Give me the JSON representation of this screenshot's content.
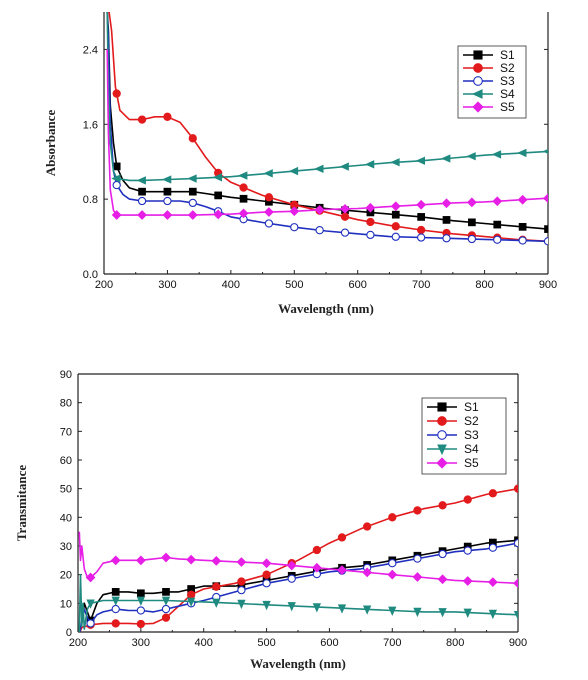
{
  "chart_data": [
    {
      "type": "line",
      "title": "",
      "xlabel": "Wavelength (nm)",
      "ylabel": "Absorbance",
      "xlim": [
        200,
        900
      ],
      "ylim": [
        0,
        2.8
      ],
      "xticks": [
        200,
        300,
        400,
        500,
        600,
        700,
        800,
        900
      ],
      "yticks": [
        0.0,
        0.8,
        1.6,
        2.4
      ],
      "ytick_labels": [
        "0.0",
        "0.8",
        "1.6",
        "2.4"
      ],
      "grid": false,
      "legend_position": "top-right",
      "series": [
        {
          "name": "S1",
          "color": "#000000",
          "marker": "square",
          "filled": true,
          "x": [
            205,
            207,
            210,
            215,
            220,
            230,
            240,
            260,
            280,
            300,
            320,
            340,
            360,
            380,
            400,
            450,
            500,
            550,
            600,
            650,
            700,
            750,
            800,
            850,
            900
          ],
          "y": [
            2.8,
            2.6,
            1.8,
            1.4,
            1.15,
            1.0,
            0.92,
            0.88,
            0.88,
            0.88,
            0.88,
            0.88,
            0.86,
            0.84,
            0.82,
            0.78,
            0.74,
            0.7,
            0.67,
            0.64,
            0.61,
            0.57,
            0.54,
            0.51,
            0.48
          ],
          "mx": [
            220,
            260,
            300,
            340,
            380,
            420,
            460,
            500,
            540,
            580,
            620,
            660,
            700,
            740,
            780,
            820,
            860,
            900
          ]
        },
        {
          "name": "S2",
          "color": "#e31a1c",
          "marker": "circle",
          "filled": true,
          "x": [
            205,
            208,
            212,
            218,
            225,
            240,
            260,
            280,
            300,
            320,
            340,
            360,
            380,
            400,
            450,
            500,
            550,
            600,
            650,
            700,
            750,
            800,
            850,
            900
          ],
          "y": [
            2.8,
            2.8,
            2.6,
            2.0,
            1.75,
            1.65,
            1.65,
            1.68,
            1.68,
            1.62,
            1.45,
            1.25,
            1.08,
            0.98,
            0.84,
            0.74,
            0.66,
            0.58,
            0.52,
            0.47,
            0.43,
            0.4,
            0.37,
            0.35
          ],
          "mx": [
            220,
            260,
            300,
            340,
            380,
            420,
            460,
            500,
            540,
            580,
            620,
            660,
            700,
            740,
            780,
            820,
            860
          ]
        },
        {
          "name": "S3",
          "color": "#1f2fbf",
          "marker": "circle",
          "filled": false,
          "x": [
            205,
            207,
            210,
            215,
            220,
            230,
            240,
            260,
            280,
            300,
            320,
            340,
            360,
            380,
            400,
            450,
            500,
            550,
            600,
            650,
            700,
            750,
            800,
            850,
            900
          ],
          "y": [
            2.8,
            2.5,
            1.6,
            1.1,
            0.95,
            0.85,
            0.8,
            0.78,
            0.78,
            0.78,
            0.78,
            0.76,
            0.72,
            0.67,
            0.61,
            0.55,
            0.5,
            0.46,
            0.43,
            0.4,
            0.39,
            0.38,
            0.37,
            0.36,
            0.35
          ],
          "mx": [
            220,
            260,
            300,
            340,
            380,
            420,
            460,
            500,
            540,
            580,
            620,
            660,
            700,
            740,
            780,
            820,
            860,
            900
          ]
        },
        {
          "name": "S4",
          "color": "#1f8a80",
          "marker": "triangle-left",
          "filled": true,
          "x": [
            205,
            207,
            210,
            215,
            220,
            240,
            260,
            300,
            340,
            400,
            450,
            500,
            550,
            600,
            650,
            700,
            750,
            800,
            850,
            900
          ],
          "y": [
            2.8,
            2.0,
            1.4,
            1.1,
            1.02,
            1.0,
            1.0,
            1.01,
            1.02,
            1.04,
            1.07,
            1.1,
            1.13,
            1.16,
            1.19,
            1.21,
            1.24,
            1.27,
            1.29,
            1.31
          ],
          "mx": [
            220,
            260,
            300,
            340,
            380,
            420,
            460,
            500,
            540,
            580,
            620,
            660,
            700,
            740,
            780,
            820,
            860,
            900
          ]
        },
        {
          "name": "S5",
          "color": "#e61ee6",
          "marker": "diamond",
          "filled": true,
          "x": [
            205,
            207,
            210,
            215,
            220,
            240,
            260,
            300,
            340,
            400,
            450,
            500,
            550,
            600,
            650,
            700,
            750,
            800,
            850,
            900
          ],
          "y": [
            2.4,
            1.5,
            0.9,
            0.68,
            0.63,
            0.63,
            0.63,
            0.63,
            0.63,
            0.64,
            0.66,
            0.67,
            0.69,
            0.7,
            0.72,
            0.74,
            0.76,
            0.77,
            0.79,
            0.81
          ],
          "mx": [
            220,
            260,
            300,
            340,
            380,
            420,
            460,
            500,
            540,
            580,
            620,
            660,
            700,
            740,
            780,
            820,
            860,
            900
          ]
        }
      ]
    },
    {
      "type": "line",
      "title": "",
      "xlabel": "Wavelength (nm)",
      "ylabel": "Transmitance",
      "xlim": [
        200,
        900
      ],
      "ylim": [
        0,
        90
      ],
      "xticks": [
        200,
        300,
        400,
        500,
        600,
        700,
        800,
        900
      ],
      "yticks": [
        0,
        10,
        20,
        30,
        40,
        50,
        60,
        70,
        80,
        90
      ],
      "ytick_labels": [
        "0",
        "10",
        "20",
        "30",
        "40",
        "50",
        "60",
        "70",
        "80",
        "90"
      ],
      "grid": false,
      "legend_position": "top-right",
      "series": [
        {
          "name": "S1",
          "color": "#000000",
          "marker": "square",
          "filled": true,
          "x": [
            203,
            206,
            210,
            215,
            220,
            230,
            240,
            260,
            280,
            300,
            320,
            340,
            360,
            380,
            400,
            450,
            500,
            550,
            600,
            650,
            700,
            750,
            800,
            850,
            900
          ],
          "y": [
            0,
            3,
            10,
            7,
            4,
            10,
            13,
            14,
            14,
            13.5,
            13.5,
            14,
            14,
            15,
            16,
            16,
            18,
            20,
            22,
            23,
            25,
            27,
            29,
            31,
            32
          ],
          "mx": [
            220,
            260,
            300,
            340,
            380,
            420,
            460,
            500,
            540,
            580,
            620,
            660,
            700,
            740,
            780,
            820,
            860,
            900
          ]
        },
        {
          "name": "S2",
          "color": "#e31a1c",
          "marker": "circle",
          "filled": true,
          "x": [
            203,
            206,
            210,
            215,
            220,
            240,
            260,
            280,
            300,
            320,
            340,
            360,
            380,
            400,
            450,
            500,
            550,
            600,
            650,
            700,
            750,
            800,
            850,
            900
          ],
          "y": [
            0,
            1.5,
            2,
            2,
            2.5,
            3,
            3,
            3,
            2.8,
            3,
            5,
            9,
            13,
            15,
            17,
            20,
            25,
            31,
            36,
            40,
            43,
            45,
            48,
            50
          ],
          "mx": [
            220,
            260,
            300,
            340,
            380,
            420,
            460,
            500,
            540,
            580,
            620,
            660,
            700,
            740,
            780,
            820,
            860,
            900
          ]
        },
        {
          "name": "S3",
          "color": "#1f2fbf",
          "marker": "circle",
          "filled": false,
          "x": [
            203,
            206,
            210,
            215,
            220,
            230,
            240,
            260,
            280,
            300,
            320,
            340,
            360,
            380,
            400,
            450,
            500,
            550,
            600,
            650,
            700,
            750,
            800,
            850,
            900
          ],
          "y": [
            0,
            4,
            8,
            5,
            3,
            6,
            7,
            8,
            7.5,
            7.5,
            7,
            8,
            9,
            10,
            11,
            14,
            17,
            19,
            21,
            22,
            24,
            26,
            28,
            29,
            31
          ],
          "mx": [
            220,
            260,
            300,
            340,
            380,
            420,
            460,
            500,
            540,
            580,
            620,
            660,
            700,
            740,
            780,
            820,
            860,
            900
          ]
        },
        {
          "name": "S4",
          "color": "#1f8a80",
          "marker": "triangle-down",
          "filled": true,
          "x": [
            202,
            204,
            206,
            208,
            210,
            215,
            220,
            240,
            260,
            300,
            340,
            400,
            450,
            500,
            550,
            600,
            650,
            700,
            750,
            800,
            850,
            900
          ],
          "y": [
            0,
            20,
            2,
            10,
            1,
            8,
            10,
            11,
            11,
            11,
            11,
            10.5,
            10,
            9.5,
            9,
            8.5,
            8,
            7.5,
            7,
            7,
            6.5,
            6
          ],
          "mx": [
            220,
            260,
            300,
            340,
            380,
            420,
            460,
            500,
            540,
            580,
            620,
            660,
            700,
            740,
            780,
            820,
            860,
            900
          ]
        },
        {
          "name": "S5",
          "color": "#e61ee6",
          "marker": "diamond",
          "filled": true,
          "x": [
            202,
            204,
            206,
            210,
            215,
            220,
            230,
            240,
            260,
            280,
            300,
            320,
            340,
            360,
            400,
            450,
            500,
            550,
            600,
            650,
            700,
            750,
            800,
            850,
            900
          ],
          "y": [
            35,
            25,
            30,
            22,
            19,
            19,
            21,
            24,
            25,
            25,
            25,
            25.5,
            26,
            25.5,
            25,
            24.5,
            24,
            23,
            22,
            21,
            20,
            19,
            18,
            17.5,
            17
          ],
          "mx": [
            220,
            260,
            300,
            340,
            380,
            420,
            460,
            500,
            540,
            580,
            620,
            660,
            700,
            740,
            780,
            820,
            860,
            900
          ]
        }
      ]
    }
  ]
}
